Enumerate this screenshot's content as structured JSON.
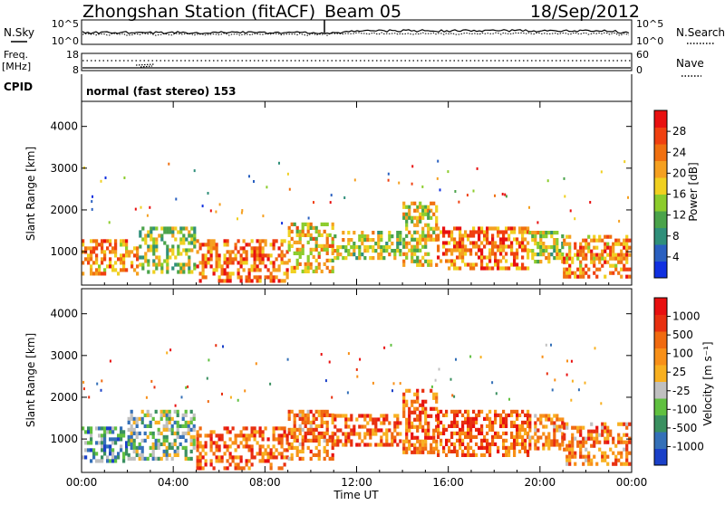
{
  "header": {
    "title": "Zhongshan Station (fitACF)",
    "beam": "Beam 05",
    "date": "18/Sep/2012",
    "cpid_label": "CPID",
    "cpid_text": "normal (fast stereo) 153"
  },
  "summary_panels": {
    "noise": {
      "left_label": "N.Sky",
      "right_label": "N.Search",
      "left_ticks": [
        "10^5",
        "10^0"
      ],
      "right_ticks": [
        "10^5",
        "10^0"
      ]
    },
    "freq": {
      "left_label_line1": "Freq.",
      "left_label_line2": "[MHz]",
      "right_label": "Nave",
      "left_ticks": [
        "18",
        "8"
      ],
      "right_ticks": [
        "60",
        "0"
      ]
    }
  },
  "colors": {
    "power_scale": [
      "#1030e0",
      "#2a60c0",
      "#2f8f7a",
      "#4aa34a",
      "#8ccc2c",
      "#f0d020",
      "#f5a020",
      "#f07010",
      "#f04010",
      "#e81010"
    ],
    "velocity_scale": [
      "#1a40c8",
      "#3470b8",
      "#3a9060",
      "#60c040",
      "#c0c0c0",
      "#f8b020",
      "#f89018",
      "#f06a10",
      "#e83010",
      "#e81010"
    ]
  },
  "chart_data": [
    {
      "type": "heatmap",
      "quantity": "power",
      "xlabel": "Time UT",
      "ylabel": "Slant Range [km]",
      "x_ticks": [
        "00:00",
        "04:00",
        "08:00",
        "12:00",
        "16:00",
        "20:00",
        "00:00"
      ],
      "x_range_hours": [
        0,
        24
      ],
      "y_ticks": [
        1000,
        2000,
        3000,
        4000
      ],
      "ylim": [
        200,
        4600
      ],
      "colorbar": {
        "label": "Power [dB]",
        "ticks": [
          4,
          8,
          12,
          16,
          20,
          24,
          28
        ],
        "range": [
          0,
          32
        ]
      },
      "echo_regions": [
        {
          "t": [
            0.0,
            2.5
          ],
          "r": [
            400,
            1300
          ],
          "level": 0.7
        },
        {
          "t": [
            2.5,
            5.0
          ],
          "r": [
            500,
            1600
          ],
          "level": 0.45
        },
        {
          "t": [
            5.0,
            9.0
          ],
          "r": [
            250,
            1300
          ],
          "level": 0.75
        },
        {
          "t": [
            9.0,
            11.0
          ],
          "r": [
            500,
            1700
          ],
          "level": 0.6
        },
        {
          "t": [
            11.0,
            14.0
          ],
          "r": [
            800,
            1500
          ],
          "level": 0.5
        },
        {
          "t": [
            14.0,
            15.5
          ],
          "r": [
            600,
            2200
          ],
          "level": 0.55
        },
        {
          "t": [
            15.5,
            19.5
          ],
          "r": [
            600,
            1600
          ],
          "level": 0.75
        },
        {
          "t": [
            19.5,
            21.0
          ],
          "r": [
            700,
            1500
          ],
          "level": 0.5
        },
        {
          "t": [
            21.0,
            24.0
          ],
          "r": [
            400,
            1400
          ],
          "level": 0.7
        }
      ]
    },
    {
      "type": "heatmap",
      "quantity": "velocity",
      "xlabel": "Time UT",
      "ylabel": "Slant Range [km]",
      "x_ticks": [
        "00:00",
        "04:00",
        "08:00",
        "12:00",
        "16:00",
        "20:00",
        "00:00"
      ],
      "x_range_hours": [
        0,
        24
      ],
      "y_ticks": [
        1000,
        2000,
        3000,
        4000
      ],
      "ylim": [
        200,
        4600
      ],
      "colorbar": {
        "label": "Velocity [m s⁻¹]",
        "ticks": [
          "1000",
          "500",
          "100",
          "25",
          "-25",
          "-100",
          "-500",
          "-1000"
        ]
      },
      "echo_regions": [
        {
          "t": [
            0.0,
            2.0
          ],
          "r": [
            400,
            1300
          ],
          "level": 0.25
        },
        {
          "t": [
            2.0,
            5.0
          ],
          "r": [
            500,
            1700
          ],
          "level": 0.35
        },
        {
          "t": [
            5.0,
            9.0
          ],
          "r": [
            300,
            1300
          ],
          "level": 0.75
        },
        {
          "t": [
            9.0,
            11.0
          ],
          "r": [
            500,
            1700
          ],
          "level": 0.7
        },
        {
          "t": [
            11.0,
            14.0
          ],
          "r": [
            800,
            1600
          ],
          "level": 0.75
        },
        {
          "t": [
            14.0,
            15.5
          ],
          "r": [
            600,
            2200
          ],
          "level": 0.75
        },
        {
          "t": [
            15.5,
            19.5
          ],
          "r": [
            600,
            1700
          ],
          "level": 0.75
        },
        {
          "t": [
            19.5,
            21.0
          ],
          "r": [
            700,
            1600
          ],
          "level": 0.7
        },
        {
          "t": [
            21.0,
            24.0
          ],
          "r": [
            400,
            1400
          ],
          "level": 0.7
        }
      ]
    }
  ]
}
